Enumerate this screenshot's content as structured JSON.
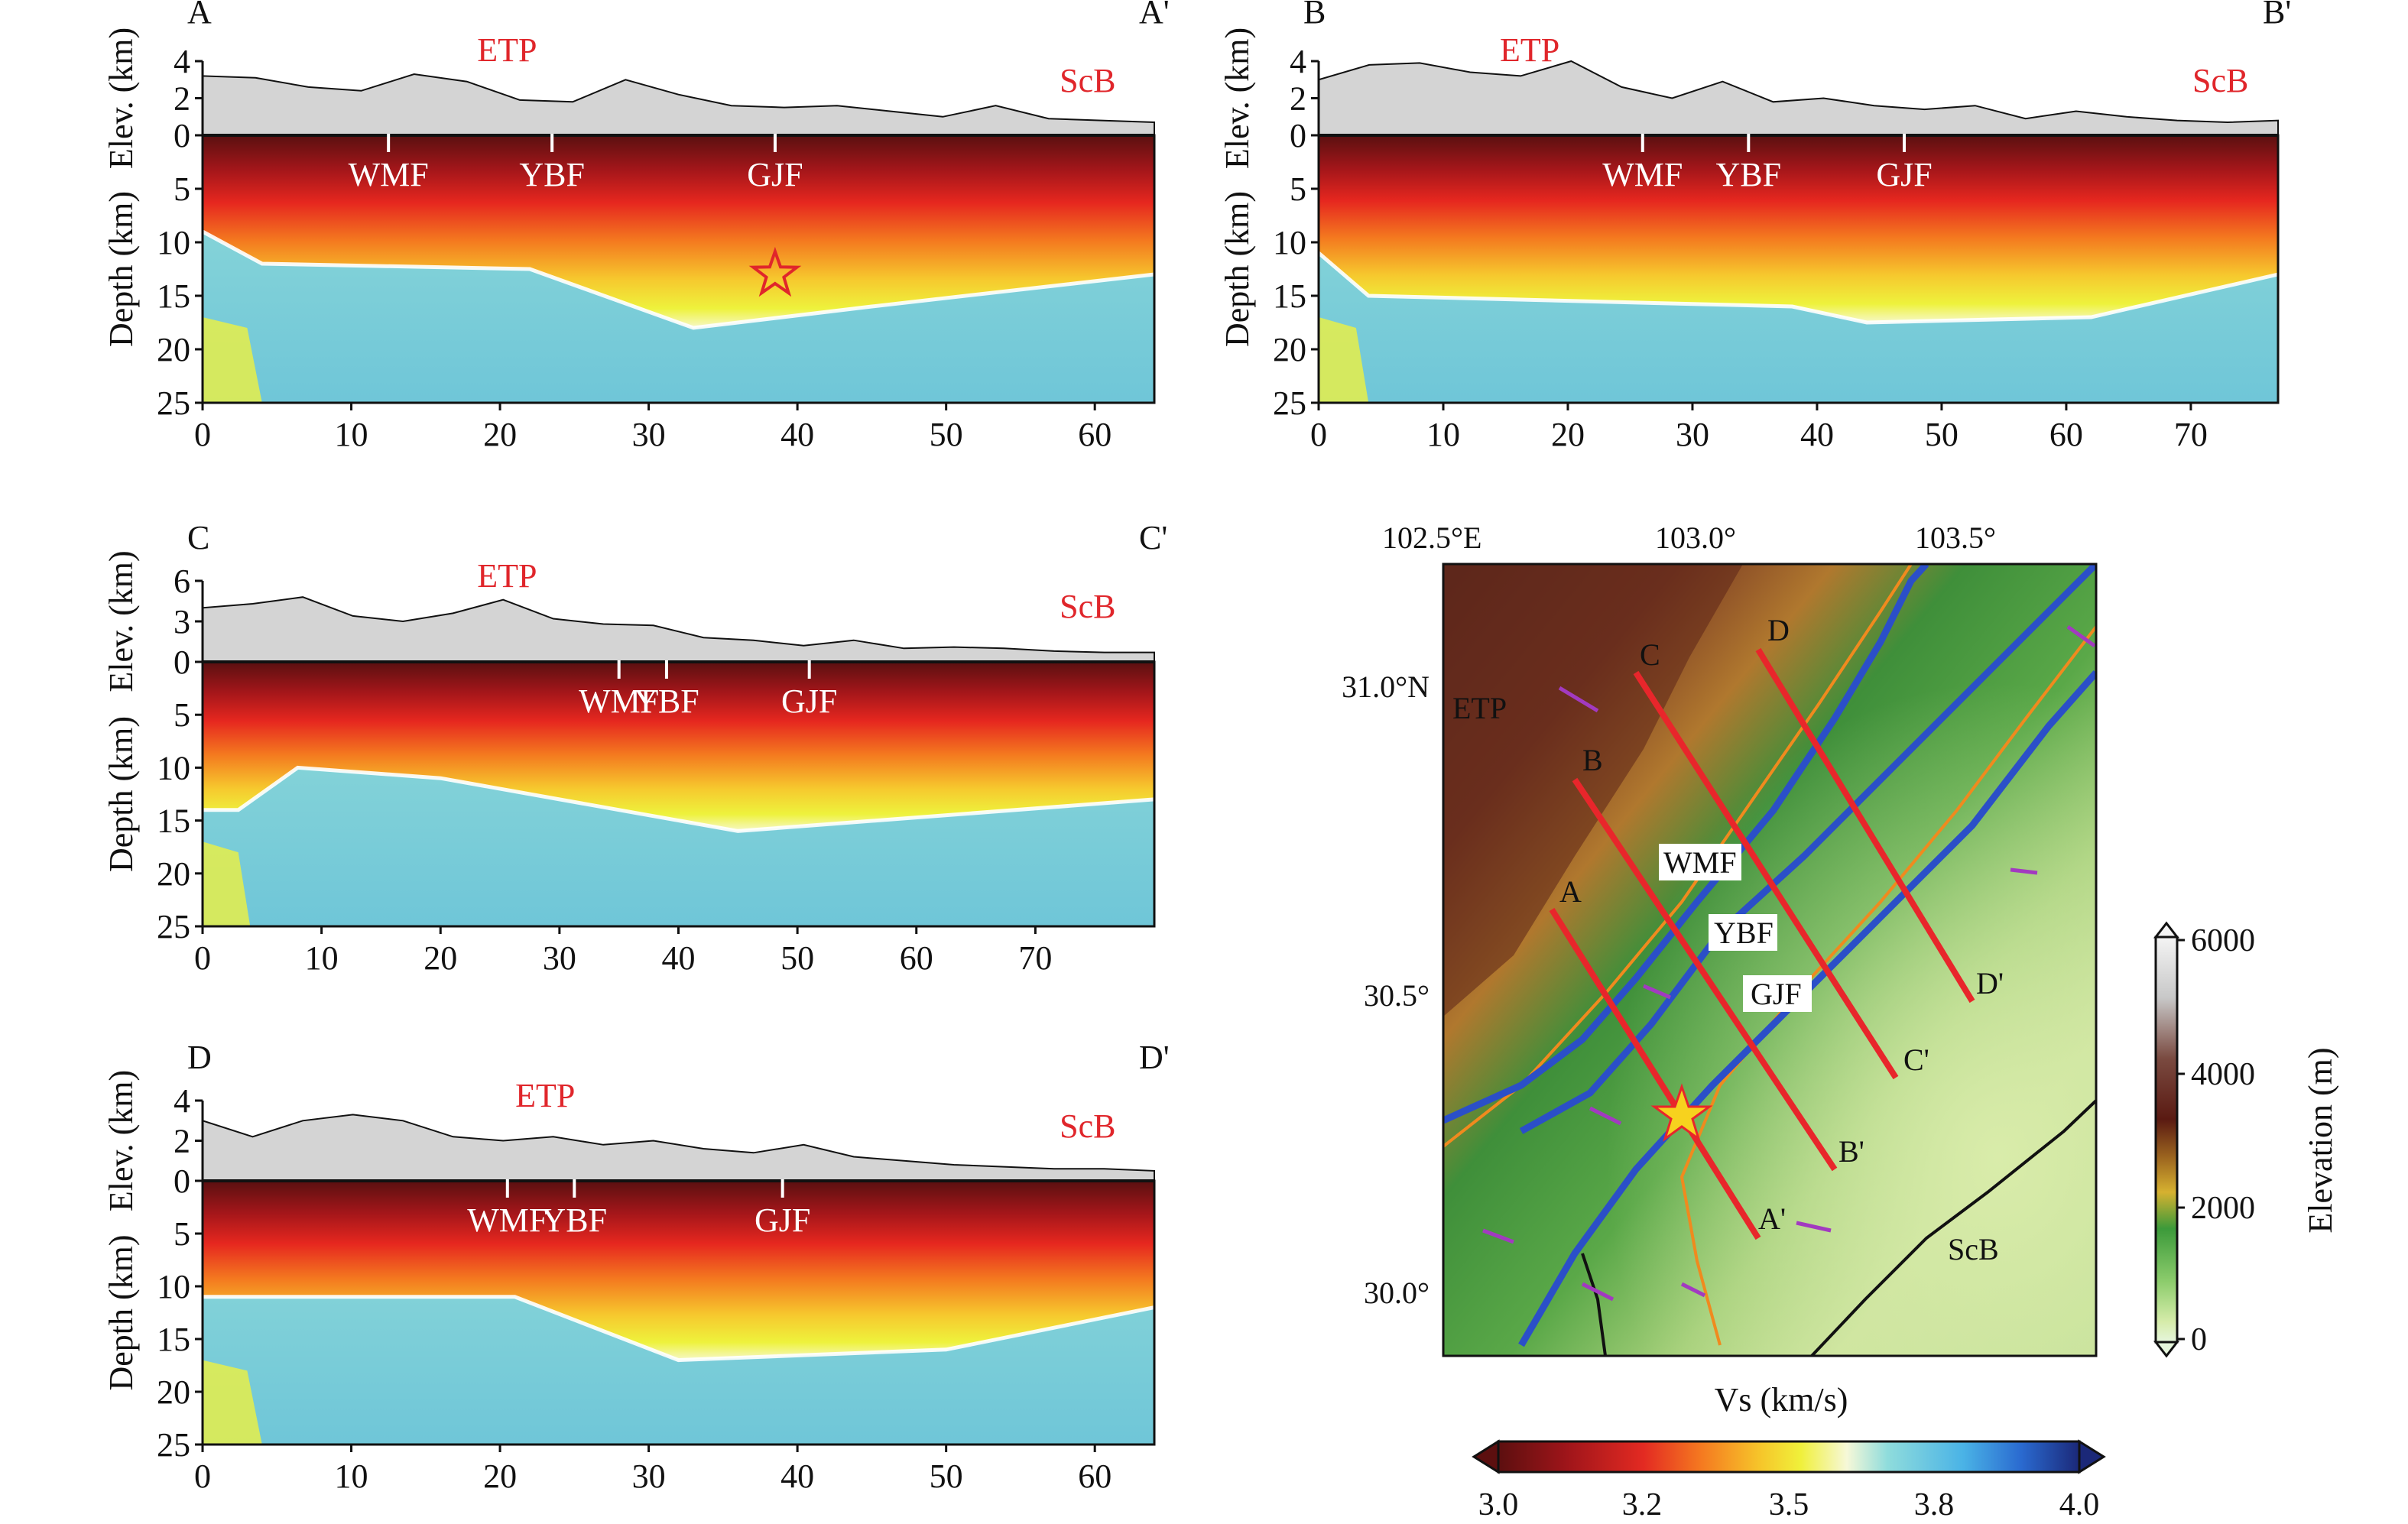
{
  "colors": {
    "region_label": "#e0262b",
    "profile_line": "#e8262b",
    "fault_line": "#2b4fc8",
    "star": "#f7d21e"
  },
  "common": {
    "elev_label": "Elev. (km)",
    "depth_label": "Depth (km)",
    "region_a": "ETP",
    "region_b": "ScB"
  },
  "panels": [
    {
      "id": "A",
      "start_label": "A",
      "end_label": "A'",
      "elev_ticks": [
        "4",
        "2",
        "0"
      ],
      "depth_ticks": [
        "0",
        "5",
        "10",
        "15",
        "20",
        "25"
      ],
      "x_ticks": [
        "0",
        "10",
        "20",
        "30",
        "40",
        "50",
        "60"
      ],
      "x_max": 64,
      "faults": [
        {
          "name": "WMF",
          "km": 12.5
        },
        {
          "name": "YBF",
          "km": 23.5
        },
        {
          "name": "GJF",
          "km": 38.5
        }
      ],
      "star_km": 38.5,
      "star_depth_km": 13
    },
    {
      "id": "B",
      "start_label": "B",
      "end_label": "B'",
      "elev_ticks": [
        "4",
        "2",
        "0"
      ],
      "depth_ticks": [
        "0",
        "5",
        "10",
        "15",
        "20",
        "25"
      ],
      "x_ticks": [
        "0",
        "10",
        "20",
        "30",
        "40",
        "50",
        "60",
        "70"
      ],
      "x_max": 77,
      "faults": [
        {
          "name": "WMF",
          "km": 26
        },
        {
          "name": "YBF",
          "km": 34.5
        },
        {
          "name": "GJF",
          "km": 47
        }
      ]
    },
    {
      "id": "C",
      "start_label": "C",
      "end_label": "C'",
      "elev_ticks": [
        "6",
        "3",
        "0"
      ],
      "depth_ticks": [
        "0",
        "5",
        "10",
        "15",
        "20",
        "25"
      ],
      "x_ticks": [
        "0",
        "10",
        "20",
        "30",
        "40",
        "50",
        "60",
        "70"
      ],
      "x_max": 80,
      "faults": [
        {
          "name": "WMF",
          "km": 35
        },
        {
          "name": "YBF",
          "km": 39
        },
        {
          "name": "GJF",
          "km": 51
        }
      ]
    },
    {
      "id": "D",
      "start_label": "D",
      "end_label": "D'",
      "elev_ticks": [
        "4",
        "2",
        "0"
      ],
      "depth_ticks": [
        "0",
        "5",
        "10",
        "15",
        "20",
        "25"
      ],
      "x_ticks": [
        "0",
        "10",
        "20",
        "30",
        "40",
        "50",
        "60"
      ],
      "x_max": 64,
      "faults": [
        {
          "name": "WMF",
          "km": 20.5
        },
        {
          "name": "YBF",
          "km": 25
        },
        {
          "name": "GJF",
          "km": 39
        }
      ]
    }
  ],
  "map": {
    "lon_labels": [
      "102.5°E",
      "103.0°",
      "103.5°"
    ],
    "lat_labels": [
      "31.0°N",
      "30.5°",
      "30.0°"
    ],
    "region_a": "ETP",
    "region_b": "ScB",
    "fault_labels": [
      "WMF",
      "YBF",
      "GJF"
    ],
    "profile_labels": [
      "A",
      "A'",
      "B",
      "B'",
      "C",
      "C'",
      "D",
      "D'"
    ],
    "elev_colorbar": {
      "label": "Elevation (m)",
      "ticks": [
        "6000",
        "4000",
        "2000",
        "0"
      ]
    }
  },
  "vs_colorbar": {
    "label": "Vs (km/s)",
    "ticks": [
      "3.0",
      "3.2",
      "3.5",
      "3.8",
      "4.0"
    ]
  }
}
